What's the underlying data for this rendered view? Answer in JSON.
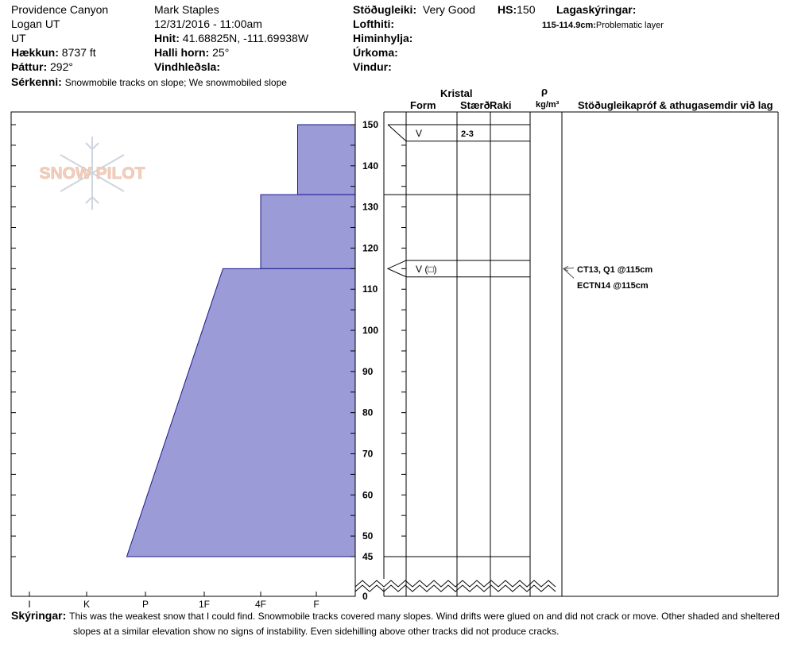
{
  "header": {
    "location": "Providence Canyon",
    "region": "Logan UT",
    "state": "UT",
    "elevation_label": "Hækkun:",
    "elevation_value": "8737 ft",
    "aspect_label": "Þáttur:",
    "aspect_value": "292°",
    "features_label": "Sérkenni:",
    "features_value": "Snowmobile tracks on slope; We snowmobiled slope",
    "observer": "Mark Staples",
    "datetime": "12/31/2016 - 11:00am",
    "coords_label": "Hnit:",
    "coords_value": "41.68825N, -111.69938W",
    "slope_label": "Halli horn:",
    "slope_value": "25°",
    "wind_loading_label": "Vindhleðsla:",
    "stability_label": "Stöðugleiki:",
    "stability_value": "Very Good",
    "hs_label": "HS:",
    "hs_value": "150",
    "air_temp_label": "Lofthiti:",
    "sky_label": "Himinhylja:",
    "precip_label": "Úrkoma:",
    "wind_label": "Vindur:",
    "layer_notes_label": "Lagaskýringar:",
    "layer_notes_range": "115-114.9cm:",
    "layer_notes_value": "Problematic layer"
  },
  "columns": {
    "crystal": "Kristal",
    "form": "Form",
    "size": "Stærð",
    "moisture": "Raki",
    "rho": "ρ",
    "density_unit": "kg/m³",
    "tests": "Stöðugleikapróf & athugasemdir við lag"
  },
  "layers": [
    {
      "form": "V",
      "size": "2-3"
    },
    {
      "form": "V (□)",
      "size": ""
    }
  ],
  "tests": [
    "CT13, Q1 @115cm",
    "ECTN14 @115cm"
  ],
  "notes": {
    "label": "Skýringar:",
    "line1": "This was the weakest snow that I could find. Snowmobile tracks covered many slopes. Wind drifts were glued on and did not crack or move. Other shaded and sheltered",
    "line2": "slopes at a similar elevation show no signs of instability. Even sidehilling above other tracks did not produce cracks."
  },
  "logo_text": "SNOW PILOT",
  "chart_data": {
    "type": "area",
    "title": "",
    "xlabel": "",
    "ylabel": "",
    "hardness_ticks": [
      "I",
      "K",
      "P",
      "1F",
      "4F",
      "F"
    ],
    "height_ticks": [
      150,
      140,
      130,
      120,
      110,
      100,
      90,
      80,
      70,
      60,
      50,
      45,
      0
    ],
    "ylim": [
      0,
      150
    ],
    "hardness_profile": [
      {
        "top": 150,
        "bottom": 133,
        "hardness_top": "F+",
        "hardness_bottom": "F+"
      },
      {
        "top": 133,
        "bottom": 115,
        "hardness_top": "4F",
        "hardness_bottom": "4F"
      },
      {
        "top": 115,
        "bottom": 45,
        "hardness_top": "1F-",
        "hardness_bottom": "P+"
      }
    ],
    "layer_boundaries": [
      150,
      146,
      133,
      117,
      113,
      45
    ],
    "layer_symbols": [
      148,
      115
    ],
    "stability_markers": [
      115
    ]
  }
}
